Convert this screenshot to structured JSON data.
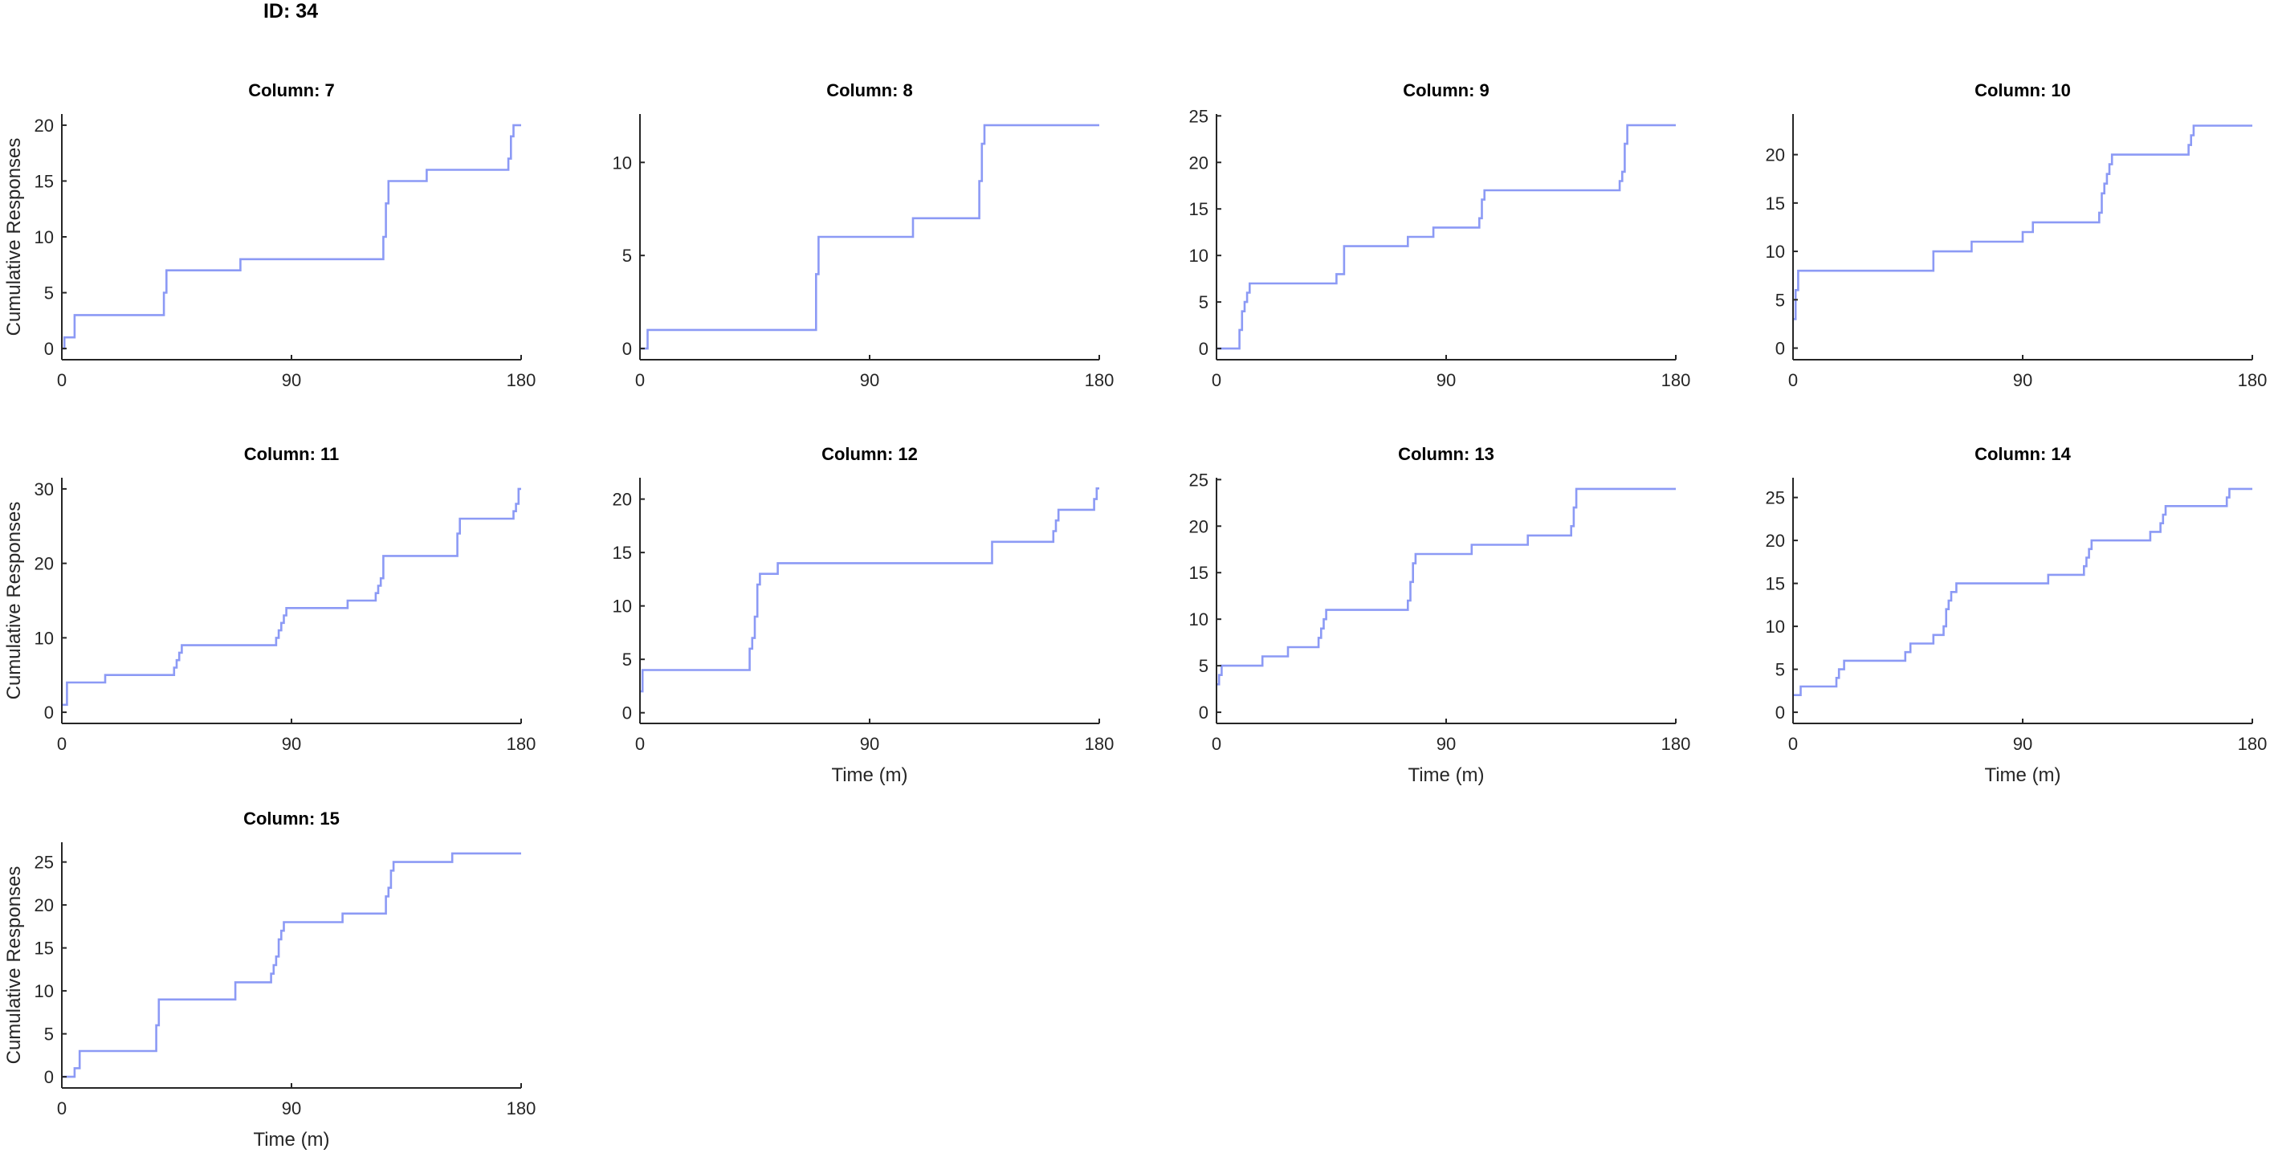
{
  "figure_title": "ID: 34",
  "colors": {
    "line": "#8c9af5",
    "axis": "#262626"
  },
  "chart_data": [
    {
      "type": "line",
      "step": "post",
      "title": "Column: 7",
      "xlabel": "",
      "ylabel": "Cumulative Responses",
      "xlim": [
        0,
        180
      ],
      "ylim": [
        -1,
        21
      ],
      "xticks": [
        0,
        90,
        180
      ],
      "yticks": [
        0,
        5,
        10,
        15,
        20
      ],
      "grid": false,
      "x": [
        0,
        1,
        2,
        5,
        39,
        40,
        41,
        70,
        125,
        126,
        127,
        128,
        143,
        174,
        175,
        176,
        177,
        180
      ],
      "y": [
        0,
        1,
        1,
        3,
        3,
        5,
        7,
        8,
        8,
        10,
        13,
        15,
        16,
        16,
        17,
        19,
        20,
        20
      ]
    },
    {
      "type": "line",
      "step": "post",
      "title": "Column: 8",
      "xlabel": "",
      "ylabel": "",
      "xlim": [
        0,
        180
      ],
      "ylim": [
        -0.6,
        12.6
      ],
      "xticks": [
        0,
        90,
        180
      ],
      "yticks": [
        0,
        5,
        10
      ],
      "grid": false,
      "x": [
        0,
        3,
        68,
        69,
        70,
        107,
        132,
        133,
        134,
        135,
        180
      ],
      "y": [
        0,
        1,
        1,
        4,
        6,
        7,
        7,
        9,
        11,
        12,
        12
      ]
    },
    {
      "type": "line",
      "step": "post",
      "title": "Column: 9",
      "xlabel": "",
      "ylabel": "",
      "xlim": [
        0,
        180
      ],
      "ylim": [
        -1.2,
        25.2
      ],
      "xticks": [
        0,
        90,
        180
      ],
      "yticks": [
        0,
        5,
        10,
        15,
        20,
        25
      ],
      "grid": false,
      "x": [
        0,
        9,
        10,
        11,
        12,
        13,
        47,
        50,
        75,
        85,
        103,
        104,
        105,
        157,
        158,
        159,
        160,
        161,
        180
      ],
      "y": [
        0,
        2,
        4,
        5,
        6,
        7,
        8,
        11,
        12,
        13,
        14,
        16,
        17,
        17,
        18,
        19,
        22,
        24,
        24
      ]
    },
    {
      "type": "line",
      "step": "post",
      "title": "Column: 10",
      "xlabel": "",
      "ylabel": "",
      "xlim": [
        0,
        180
      ],
      "ylim": [
        -1.2,
        24.2
      ],
      "xticks": [
        0,
        90,
        180
      ],
      "yticks": [
        0,
        5,
        10,
        15,
        20
      ],
      "grid": false,
      "x": [
        0,
        1,
        2,
        55,
        70,
        90,
        94,
        120,
        121,
        122,
        123,
        124,
        125,
        155,
        156,
        157,
        180
      ],
      "y": [
        3,
        6,
        8,
        10,
        11,
        12,
        13,
        14,
        16,
        17,
        18,
        19,
        20,
        21,
        22,
        23,
        23
      ]
    },
    {
      "type": "line",
      "step": "post",
      "title": "Column: 11",
      "xlabel": "",
      "ylabel": "Cumulative Responses",
      "xlim": [
        0,
        180
      ],
      "ylim": [
        -1.5,
        31.5
      ],
      "xticks": [
        0,
        90,
        180
      ],
      "yticks": [
        0,
        10,
        20,
        30
      ],
      "grid": false,
      "x": [
        0,
        2,
        17,
        44,
        45,
        46,
        47,
        84,
        85,
        86,
        87,
        88,
        112,
        123,
        124,
        125,
        126,
        127,
        155,
        156,
        177,
        178,
        179,
        180
      ],
      "y": [
        1,
        4,
        5,
        6,
        7,
        8,
        9,
        10,
        11,
        12,
        13,
        14,
        15,
        16,
        17,
        18,
        21,
        21,
        24,
        26,
        27,
        28,
        30,
        30
      ]
    },
    {
      "type": "line",
      "step": "post",
      "title": "Column: 12",
      "xlabel": "Time (m)",
      "ylabel": "",
      "xlim": [
        0,
        180
      ],
      "ylim": [
        -1,
        22
      ],
      "xticks": [
        0,
        90,
        180
      ],
      "yticks": [
        0,
        5,
        10,
        15,
        20
      ],
      "grid": false,
      "x": [
        0,
        1,
        42,
        43,
        44,
        45,
        46,
        47,
        54,
        137,
        138,
        162,
        163,
        164,
        178,
        179,
        180
      ],
      "y": [
        2,
        4,
        4,
        6,
        7,
        9,
        12,
        13,
        14,
        14,
        16,
        17,
        18,
        19,
        20,
        21,
        21
      ]
    },
    {
      "type": "line",
      "step": "post",
      "title": "Column: 13",
      "xlabel": "Time (m)",
      "ylabel": "",
      "xlim": [
        0,
        180
      ],
      "ylim": [
        -1.2,
        25.2
      ],
      "xticks": [
        0,
        90,
        180
      ],
      "yticks": [
        0,
        5,
        10,
        15,
        20,
        25
      ],
      "grid": false,
      "x": [
        0,
        1,
        2,
        18,
        28,
        40,
        41,
        42,
        43,
        44,
        75,
        76,
        77,
        78,
        79,
        100,
        122,
        139,
        140,
        141,
        142,
        180
      ],
      "y": [
        3,
        4,
        5,
        6,
        7,
        8,
        9,
        10,
        11,
        11,
        12,
        14,
        16,
        17,
        17,
        18,
        19,
        20,
        22,
        24,
        24,
        24
      ]
    },
    {
      "type": "line",
      "step": "post",
      "title": "Column: 14",
      "xlabel": "Time (m)",
      "ylabel": "",
      "xlim": [
        0,
        180
      ],
      "ylim": [
        -1.3,
        27.3
      ],
      "xticks": [
        0,
        90,
        180
      ],
      "yticks": [
        0,
        5,
        10,
        15,
        20,
        25
      ],
      "grid": false,
      "x": [
        0,
        3,
        17,
        18,
        19,
        20,
        44,
        46,
        55,
        59,
        60,
        61,
        62,
        64,
        100,
        114,
        115,
        116,
        117,
        118,
        140,
        144,
        145,
        146,
        170,
        171,
        175,
        180
      ],
      "y": [
        2,
        3,
        4,
        5,
        5,
        6,
        7,
        8,
        9,
        10,
        12,
        13,
        14,
        15,
        16,
        17,
        18,
        19,
        20,
        20,
        21,
        22,
        23,
        24,
        25,
        26,
        26,
        26
      ]
    },
    {
      "type": "line",
      "step": "post",
      "title": "Column: 15",
      "xlabel": "Time (m)",
      "ylabel": "Cumulative Responses",
      "xlim": [
        0,
        180
      ],
      "ylim": [
        -1.3,
        27.3
      ],
      "xticks": [
        0,
        90,
        180
      ],
      "yticks": [
        0,
        5,
        10,
        15,
        20,
        25
      ],
      "grid": false,
      "x": [
        0,
        5,
        7,
        36,
        37,
        38,
        68,
        82,
        83,
        84,
        85,
        86,
        87,
        110,
        127,
        128,
        129,
        130,
        153,
        180
      ],
      "y": [
        0,
        1,
        3,
        3,
        6,
        9,
        11,
        12,
        13,
        14,
        16,
        17,
        18,
        19,
        21,
        22,
        24,
        25,
        26,
        26
      ]
    }
  ]
}
